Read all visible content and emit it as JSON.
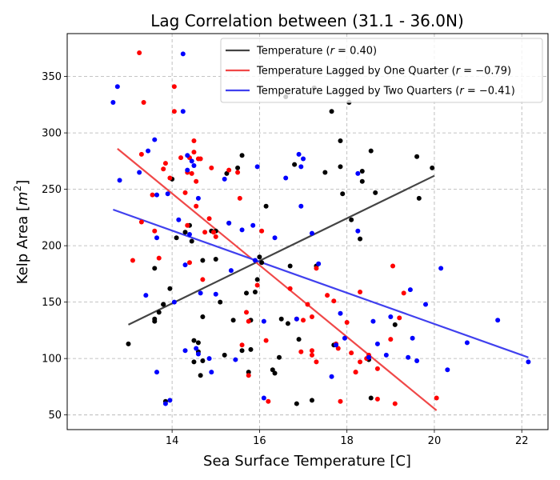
{
  "chart_data": {
    "type": "scatter",
    "title": "Lag Correlation between (31.1 - 36.0N)",
    "xlabel": "Sea Surface Temperature [C]",
    "ylabel_prefix": "Kelp Area [",
    "ylabel_unit": "m",
    "ylabel_exp": "2",
    "ylabel_suffix": "]",
    "xlim": [
      11.6,
      22.6
    ],
    "ylim": [
      37,
      388
    ],
    "xticks": [
      14,
      16,
      18,
      20,
      22
    ],
    "yticks": [
      50,
      100,
      150,
      200,
      250,
      300,
      350
    ],
    "grid": true,
    "legend_position": "top-right",
    "series": [
      {
        "name_prefix": "Temperature (",
        "name_r": "r",
        "name_value": " = 0.40)",
        "color": "#000000",
        "line_color": "#444444",
        "fit_line": [
          [
            13.0,
            130
          ],
          [
            20.0,
            262
          ]
        ],
        "points": [
          [
            13.0,
            113
          ],
          [
            13.6,
            180
          ],
          [
            13.6,
            135
          ],
          [
            13.6,
            133
          ],
          [
            13.7,
            141
          ],
          [
            13.8,
            148
          ],
          [
            13.8,
            148
          ],
          [
            13.85,
            62
          ],
          [
            13.95,
            162
          ],
          [
            14.0,
            259
          ],
          [
            14.1,
            207
          ],
          [
            14.3,
            212
          ],
          [
            14.4,
            218
          ],
          [
            14.45,
            204
          ],
          [
            14.5,
            97
          ],
          [
            14.5,
            116
          ],
          [
            14.6,
            106
          ],
          [
            14.6,
            114
          ],
          [
            14.65,
            85
          ],
          [
            14.7,
            98
          ],
          [
            14.7,
            187
          ],
          [
            14.7,
            137
          ],
          [
            14.9,
            213
          ],
          [
            15.0,
            213
          ],
          [
            15.0,
            188
          ],
          [
            15.1,
            150
          ],
          [
            15.2,
            103
          ],
          [
            15.25,
            264
          ],
          [
            15.3,
            220
          ],
          [
            15.4,
            134
          ],
          [
            15.5,
            269
          ],
          [
            15.6,
            107
          ],
          [
            15.6,
            280
          ],
          [
            15.7,
            158
          ],
          [
            15.75,
            88
          ],
          [
            15.8,
            108
          ],
          [
            15.8,
            134
          ],
          [
            15.9,
            159
          ],
          [
            15.95,
            170
          ],
          [
            16.0,
            190
          ],
          [
            16.05,
            185
          ],
          [
            16.15,
            235
          ],
          [
            16.3,
            90
          ],
          [
            16.35,
            87
          ],
          [
            16.45,
            101
          ],
          [
            16.5,
            135
          ],
          [
            16.6,
            332
          ],
          [
            16.65,
            131
          ],
          [
            16.7,
            182
          ],
          [
            16.8,
            272
          ],
          [
            16.85,
            60
          ],
          [
            16.9,
            117
          ],
          [
            17.2,
            63
          ],
          [
            17.25,
            340
          ],
          [
            17.3,
            182
          ],
          [
            17.5,
            265
          ],
          [
            17.65,
            319
          ],
          [
            17.7,
            112
          ],
          [
            17.85,
            270
          ],
          [
            17.85,
            293
          ],
          [
            17.9,
            246
          ],
          [
            18.05,
            327
          ],
          [
            18.1,
            223
          ],
          [
            18.3,
            206
          ],
          [
            18.35,
            266
          ],
          [
            18.35,
            257
          ],
          [
            18.5,
            99
          ],
          [
            18.55,
            284
          ],
          [
            18.55,
            65
          ],
          [
            18.65,
            247
          ],
          [
            19.1,
            130
          ],
          [
            19.6,
            279
          ],
          [
            19.65,
            242
          ],
          [
            19.95,
            269
          ]
        ]
      },
      {
        "name_prefix": "Temperature Lagged by One Quarter (",
        "name_r": "r",
        "name_value": " = −0.79)",
        "color": "#ff0000",
        "line_color": "#f04848",
        "fit_line": [
          [
            12.75,
            286
          ],
          [
            20.05,
            54
          ]
        ],
        "points": [
          [
            13.1,
            187
          ],
          [
            13.25,
            371
          ],
          [
            13.3,
            221
          ],
          [
            13.35,
            327
          ],
          [
            13.3,
            281
          ],
          [
            13.55,
            245
          ],
          [
            13.6,
            213
          ],
          [
            13.7,
            189
          ],
          [
            13.8,
            268
          ],
          [
            13.85,
            273
          ],
          [
            13.95,
            260
          ],
          [
            14.05,
            319
          ],
          [
            14.05,
            341
          ],
          [
            14.2,
            278
          ],
          [
            14.3,
            247
          ],
          [
            14.35,
            265
          ],
          [
            14.35,
            218
          ],
          [
            14.4,
            185
          ],
          [
            14.4,
            278
          ],
          [
            14.45,
            264
          ],
          [
            14.5,
            293
          ],
          [
            14.5,
            283
          ],
          [
            14.55,
            257
          ],
          [
            14.55,
            235
          ],
          [
            14.6,
            277
          ],
          [
            14.65,
            277
          ],
          [
            14.7,
            170
          ],
          [
            14.75,
            212
          ],
          [
            14.85,
            224
          ],
          [
            14.9,
            269
          ],
          [
            14.95,
            212
          ],
          [
            15.0,
            208
          ],
          [
            15.3,
            267
          ],
          [
            15.5,
            265
          ],
          [
            15.55,
            242
          ],
          [
            15.6,
            112
          ],
          [
            15.7,
            141
          ],
          [
            15.75,
            133
          ],
          [
            15.75,
            85
          ],
          [
            15.95,
            165
          ],
          [
            16.05,
            213
          ],
          [
            16.15,
            116
          ],
          [
            16.2,
            62
          ],
          [
            16.7,
            162
          ],
          [
            16.85,
            135
          ],
          [
            16.95,
            106
          ],
          [
            17.0,
            134
          ],
          [
            17.1,
            148
          ],
          [
            17.2,
            137
          ],
          [
            17.2,
            107
          ],
          [
            17.2,
            103
          ],
          [
            17.3,
            97
          ],
          [
            17.3,
            180
          ],
          [
            17.55,
            156
          ],
          [
            17.7,
            151
          ],
          [
            17.75,
            113
          ],
          [
            17.8,
            109
          ],
          [
            17.85,
            62
          ],
          [
            18.0,
            132
          ],
          [
            18.1,
            105
          ],
          [
            18.2,
            88
          ],
          [
            18.2,
            88
          ],
          [
            18.3,
            159
          ],
          [
            18.3,
            97
          ],
          [
            18.45,
            100
          ],
          [
            18.5,
            103
          ],
          [
            18.7,
            64
          ],
          [
            18.7,
            91
          ],
          [
            19.0,
            117
          ],
          [
            19.05,
            182
          ],
          [
            19.1,
            60
          ],
          [
            19.2,
            136
          ],
          [
            19.3,
            158
          ],
          [
            20.05,
            65
          ]
        ]
      },
      {
        "name_prefix": "Temperature Lagged by Two Quarters (",
        "name_r": "r",
        "name_value": " = −0.41)",
        "color": "#0000ff",
        "line_color": "#4040ee",
        "fit_line": [
          [
            12.65,
            232
          ],
          [
            22.15,
            101
          ]
        ],
        "points": [
          [
            12.65,
            327
          ],
          [
            12.75,
            341
          ],
          [
            12.8,
            258
          ],
          [
            13.25,
            265
          ],
          [
            13.4,
            156
          ],
          [
            13.45,
            284
          ],
          [
            13.6,
            294
          ],
          [
            13.65,
            245
          ],
          [
            13.65,
            207
          ],
          [
            13.65,
            88
          ],
          [
            13.85,
            60
          ],
          [
            13.9,
            246
          ],
          [
            13.95,
            63
          ],
          [
            14.05,
            150
          ],
          [
            14.15,
            223
          ],
          [
            14.25,
            370
          ],
          [
            14.25,
            319
          ],
          [
            14.3,
            183
          ],
          [
            14.3,
            107
          ],
          [
            14.35,
            267
          ],
          [
            14.35,
            280
          ],
          [
            14.4,
            210
          ],
          [
            14.45,
            275
          ],
          [
            14.5,
            271
          ],
          [
            14.55,
            109
          ],
          [
            14.6,
            242
          ],
          [
            14.6,
            104
          ],
          [
            14.65,
            158
          ],
          [
            14.85,
            100
          ],
          [
            14.9,
            88
          ],
          [
            15.0,
            157
          ],
          [
            15.2,
            259
          ],
          [
            15.3,
            220
          ],
          [
            15.35,
            178
          ],
          [
            15.45,
            99
          ],
          [
            15.6,
            214
          ],
          [
            15.85,
            218
          ],
          [
            15.9,
            187
          ],
          [
            15.95,
            270
          ],
          [
            16.1,
            133
          ],
          [
            16.1,
            65
          ],
          [
            16.35,
            207
          ],
          [
            16.6,
            260
          ],
          [
            16.85,
            135
          ],
          [
            16.9,
            281
          ],
          [
            16.95,
            270
          ],
          [
            16.95,
            235
          ],
          [
            17.0,
            277
          ],
          [
            17.2,
            211
          ],
          [
            17.35,
            184
          ],
          [
            17.65,
            84
          ],
          [
            17.75,
            112
          ],
          [
            17.85,
            140
          ],
          [
            17.95,
            118
          ],
          [
            18.25,
            264
          ],
          [
            18.25,
            213
          ],
          [
            18.5,
            101
          ],
          [
            18.6,
            133
          ],
          [
            18.7,
            113
          ],
          [
            18.9,
            103
          ],
          [
            19.0,
            137
          ],
          [
            19.4,
            101
          ],
          [
            19.45,
            161
          ],
          [
            19.5,
            118
          ],
          [
            19.6,
            98
          ],
          [
            19.8,
            148
          ],
          [
            20.15,
            180
          ],
          [
            20.3,
            90
          ],
          [
            20.75,
            114
          ],
          [
            21.45,
            134
          ],
          [
            22.15,
            97
          ]
        ]
      }
    ]
  }
}
